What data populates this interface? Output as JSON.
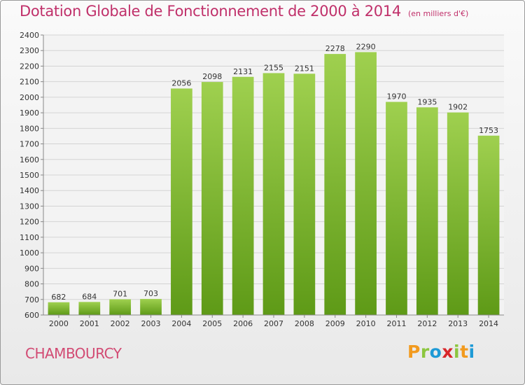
{
  "title": "Dotation Globale de Fonctionnement de 2000 à 2014",
  "subtitle": "(en milliers d'€)",
  "commune": "CHAMBOURCY",
  "logo": {
    "text": "Proxiti",
    "letters": [
      {
        "ch": "P",
        "color": "#f29a1e"
      },
      {
        "ch": "r",
        "color": "#8cc63f"
      },
      {
        "ch": "o",
        "color": "#1e9ad6"
      },
      {
        "ch": "x",
        "color": "#d8262a"
      },
      {
        "ch": "i",
        "color": "#8cc63f"
      },
      {
        "ch": "t",
        "color": "#f29a1e"
      },
      {
        "ch": "i",
        "color": "#1e9ad6"
      }
    ]
  },
  "colors": {
    "title": "#c0306a",
    "bar_top": "#9fd04f",
    "bar_bottom": "#5e9a17",
    "grid": "#d4d4d4",
    "axis_text": "#333333"
  },
  "chart_data": {
    "type": "bar",
    "categories": [
      "2000",
      "2001",
      "2002",
      "2003",
      "2004",
      "2005",
      "2006",
      "2007",
      "2008",
      "2009",
      "2010",
      "2011",
      "2012",
      "2013",
      "2014"
    ],
    "values": [
      682,
      684,
      701,
      703,
      2056,
      2098,
      2131,
      2155,
      2151,
      2278,
      2290,
      1970,
      1935,
      1902,
      1753
    ],
    "title": "Dotation Globale de Fonctionnement de 2000 à 2014",
    "ylim": [
      600,
      2400
    ],
    "yticks": [
      600,
      700,
      800,
      900,
      1000,
      1100,
      1200,
      1300,
      1400,
      1500,
      1600,
      1700,
      1800,
      1900,
      2000,
      2100,
      2200,
      2300,
      2400
    ],
    "grid": true,
    "data_labels": true
  }
}
